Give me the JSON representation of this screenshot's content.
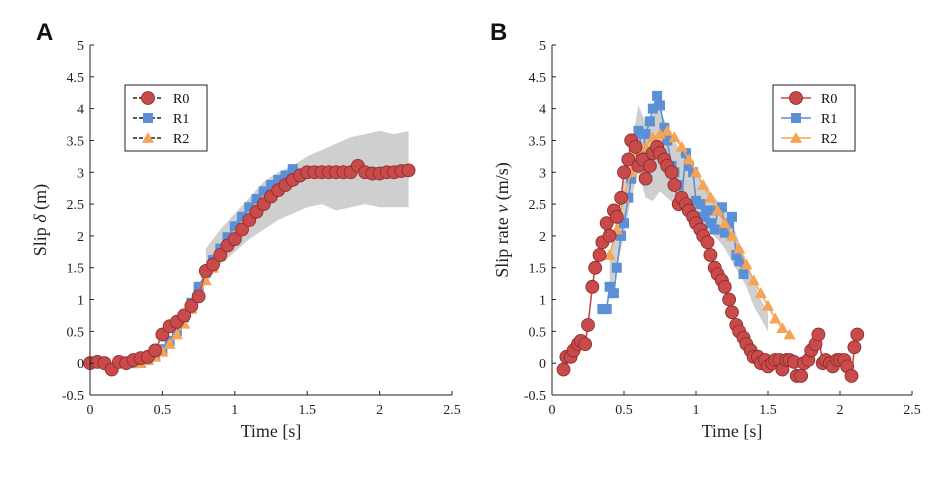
{
  "figure": {
    "panel_labels": [
      "A",
      "B"
    ]
  },
  "chart_data": [
    {
      "panel": "A",
      "type": "line",
      "xlabel": "Time [s]",
      "ylabel_parts": [
        "Slip ",
        "δ",
        " (m)"
      ],
      "xlim": [
        0,
        2.5
      ],
      "ylim": [
        -0.5,
        5
      ],
      "xticks": [
        0,
        0.5,
        1,
        1.5,
        2,
        2.5
      ],
      "xtick_labels": [
        "0",
        "0.5",
        "1",
        "1.5",
        "2",
        "2.5"
      ],
      "yticks": [
        -0.5,
        0,
        0.5,
        1,
        1.5,
        2,
        2.5,
        3,
        3.5,
        4,
        4.5,
        5
      ],
      "ytick_labels": [
        "-0.5",
        "0",
        "0.5",
        "1",
        "1.5",
        "2",
        "2.5",
        "3",
        "3.5",
        "4",
        "4.5",
        "5"
      ],
      "legend": {
        "placement": "top-left",
        "entries": [
          "R0",
          "R1",
          "R2"
        ]
      },
      "band": {
        "x": [
          0.8,
          0.9,
          1.0,
          1.1,
          1.2,
          1.3,
          1.4,
          1.5,
          1.6,
          1.7,
          1.8,
          1.9,
          2.0,
          2.1,
          2.2
        ],
        "upper": [
          1.8,
          2.1,
          2.35,
          2.6,
          2.85,
          3.0,
          3.1,
          3.25,
          3.35,
          3.45,
          3.55,
          3.6,
          3.65,
          3.6,
          3.65
        ],
        "lower": [
          1.25,
          1.55,
          1.75,
          1.95,
          2.1,
          2.25,
          2.35,
          2.45,
          2.5,
          2.4,
          2.45,
          2.5,
          2.45,
          2.45,
          2.45
        ]
      },
      "series": [
        {
          "name": "R1",
          "color": "#5b8fd6",
          "marker": "square",
          "x": [
            0.3,
            0.35,
            0.4,
            0.45,
            0.5,
            0.55,
            0.6,
            0.65,
            0.7,
            0.75,
            0.8,
            0.85,
            0.9,
            0.95,
            1.0,
            1.05,
            1.1,
            1.15,
            1.2,
            1.25,
            1.3,
            1.35,
            1.4
          ],
          "y": [
            0.0,
            0.02,
            0.05,
            0.12,
            0.22,
            0.35,
            0.5,
            0.72,
            0.95,
            1.2,
            1.42,
            1.62,
            1.8,
            1.98,
            2.15,
            2.3,
            2.45,
            2.58,
            2.7,
            2.8,
            2.88,
            2.95,
            3.05
          ]
        },
        {
          "name": "R2",
          "color": "#f5a356",
          "marker": "triangle",
          "x": [
            0.35,
            0.4,
            0.45,
            0.5,
            0.55,
            0.6,
            0.65,
            0.7,
            0.75,
            0.8,
            0.85,
            0.9,
            0.95,
            1.0,
            1.05,
            1.1,
            1.15,
            1.2,
            1.25,
            1.3,
            1.35,
            1.4,
            1.45,
            1.5,
            1.55,
            1.6,
            1.65,
            1.7,
            1.75,
            1.8
          ],
          "y": [
            0.0,
            0.05,
            0.1,
            0.18,
            0.3,
            0.45,
            0.62,
            0.85,
            1.08,
            1.3,
            1.5,
            1.68,
            1.85,
            2.0,
            2.15,
            2.28,
            2.42,
            2.55,
            2.65,
            2.75,
            2.82,
            2.9,
            2.95,
            3.0,
            3.02,
            3.03,
            3.03,
            3.04,
            3.04,
            3.04
          ]
        },
        {
          "name": "R0",
          "color": "#c84a4a",
          "marker": "circle",
          "x": [
            0.0,
            0.05,
            0.1,
            0.15,
            0.2,
            0.25,
            0.3,
            0.35,
            0.4,
            0.45,
            0.5,
            0.55,
            0.6,
            0.65,
            0.7,
            0.75,
            0.8,
            0.85,
            0.9,
            0.95,
            1.0,
            1.05,
            1.1,
            1.15,
            1.2,
            1.25,
            1.3,
            1.35,
            1.4,
            1.45,
            1.5,
            1.55,
            1.6,
            1.65,
            1.7,
            1.75,
            1.8,
            1.85,
            1.9,
            1.95,
            2.0,
            2.05,
            2.1,
            2.15,
            2.2
          ],
          "y": [
            0.0,
            0.02,
            0.0,
            -0.1,
            0.02,
            0.0,
            0.05,
            0.08,
            0.1,
            0.2,
            0.45,
            0.58,
            0.65,
            0.75,
            0.9,
            1.05,
            1.45,
            1.55,
            1.7,
            1.85,
            1.95,
            2.1,
            2.25,
            2.38,
            2.5,
            2.62,
            2.72,
            2.8,
            2.88,
            2.95,
            3.0,
            3.0,
            3.0,
            3.0,
            3.0,
            3.0,
            3.0,
            3.1,
            3.0,
            2.98,
            2.98,
            3.0,
            3.0,
            3.02,
            3.03
          ]
        }
      ]
    },
    {
      "panel": "B",
      "type": "line",
      "xlabel": "Time [s]",
      "ylabel_parts": [
        "Slip rate  ",
        "v",
        " (m/s)"
      ],
      "xlim": [
        0,
        2.5
      ],
      "ylim": [
        -0.5,
        5
      ],
      "xticks": [
        0,
        0.5,
        1,
        1.5,
        2,
        2.5
      ],
      "xtick_labels": [
        "0",
        "0.5",
        "1",
        "1.5",
        "2",
        "2.5"
      ],
      "yticks": [
        -0.5,
        0,
        0.5,
        1,
        1.5,
        2,
        2.5,
        3,
        3.5,
        4,
        4.5,
        5
      ],
      "ytick_labels": [
        "-0.5",
        "0",
        "0.5",
        "1",
        "1.5",
        "2",
        "2.5",
        "3",
        "3.5",
        "4",
        "4.5",
        "5"
      ],
      "legend": {
        "placement": "top-right",
        "entries": [
          "R0",
          "R1",
          "R2"
        ]
      },
      "band": {
        "x": [
          0.4,
          0.45,
          0.5,
          0.55,
          0.6,
          0.65,
          0.7,
          0.75,
          0.8,
          0.85,
          0.9,
          0.95,
          1.0,
          1.05,
          1.1,
          1.15,
          1.2,
          1.25,
          1.3,
          1.35,
          1.4,
          1.45,
          1.5
        ],
        "upper": [
          1.6,
          2.3,
          2.9,
          3.4,
          4.05,
          3.8,
          3.9,
          4.0,
          3.7,
          3.5,
          3.3,
          3.2,
          3.0,
          2.85,
          2.7,
          2.55,
          2.45,
          2.2,
          1.9,
          1.6,
          1.3,
          1.0,
          0.8
        ],
        "lower": [
          1.0,
          1.5,
          2.0,
          2.6,
          3.0,
          2.6,
          2.55,
          2.7,
          2.6,
          2.5,
          2.4,
          2.3,
          2.2,
          2.1,
          2.05,
          1.95,
          1.8,
          1.6,
          1.4,
          1.2,
          0.9,
          0.7,
          0.5
        ]
      },
      "series": [
        {
          "name": "R1",
          "color": "#5b8fd6",
          "marker": "square",
          "x": [
            0.35,
            0.38,
            0.4,
            0.43,
            0.45,
            0.48,
            0.5,
            0.53,
            0.55,
            0.58,
            0.6,
            0.63,
            0.65,
            0.68,
            0.7,
            0.73,
            0.75,
            0.78,
            0.8,
            0.83,
            0.85,
            0.88,
            0.9,
            0.93,
            0.95,
            0.98,
            1.0,
            1.03,
            1.05,
            1.08,
            1.1,
            1.13,
            1.15,
            1.18,
            1.2,
            1.23,
            1.25,
            1.28,
            1.3,
            1.33
          ],
          "y": [
            0.85,
            0.85,
            1.2,
            1.1,
            1.5,
            2.0,
            2.2,
            2.6,
            2.9,
            3.2,
            3.65,
            3.3,
            3.6,
            3.8,
            4.0,
            4.2,
            4.05,
            3.7,
            3.5,
            3.1,
            3.0,
            2.8,
            2.6,
            3.3,
            3.1,
            3.0,
            2.55,
            2.5,
            2.3,
            2.4,
            2.2,
            2.1,
            2.4,
            2.45,
            2.05,
            2.2,
            2.3,
            1.7,
            1.6,
            1.4
          ]
        },
        {
          "name": "R2",
          "color": "#f5a356",
          "marker": "triangle",
          "x": [
            0.4,
            0.45,
            0.5,
            0.55,
            0.6,
            0.65,
            0.7,
            0.75,
            0.8,
            0.85,
            0.9,
            0.95,
            1.0,
            1.05,
            1.1,
            1.15,
            1.2,
            1.25,
            1.3,
            1.35,
            1.4,
            1.45,
            1.5,
            1.55,
            1.6,
            1.65
          ],
          "y": [
            1.7,
            2.1,
            2.6,
            3.0,
            3.3,
            3.4,
            3.55,
            3.6,
            3.65,
            3.55,
            3.4,
            3.2,
            3.0,
            2.8,
            2.6,
            2.4,
            2.2,
            2.0,
            1.8,
            1.55,
            1.3,
            1.1,
            0.9,
            0.7,
            0.55,
            0.45
          ]
        },
        {
          "name": "R0",
          "color": "#c84a4a",
          "marker": "circle",
          "x": [
            0.08,
            0.1,
            0.13,
            0.15,
            0.18,
            0.2,
            0.23,
            0.25,
            0.28,
            0.3,
            0.33,
            0.35,
            0.38,
            0.4,
            0.43,
            0.45,
            0.48,
            0.5,
            0.53,
            0.55,
            0.58,
            0.6,
            0.63,
            0.65,
            0.68,
            0.7,
            0.73,
            0.75,
            0.78,
            0.8,
            0.83,
            0.85,
            0.88,
            0.9,
            0.93,
            0.95,
            0.98,
            1.0,
            1.03,
            1.05,
            1.08,
            1.1,
            1.13,
            1.15,
            1.18,
            1.2,
            1.23,
            1.25,
            1.28,
            1.3,
            1.33,
            1.35,
            1.38,
            1.4,
            1.43,
            1.45,
            1.48,
            1.5,
            1.53,
            1.55,
            1.58,
            1.6,
            1.63,
            1.65,
            1.68,
            1.7,
            1.73,
            1.75,
            1.78,
            1.8,
            1.83,
            1.85,
            1.88,
            1.9,
            1.93,
            1.95,
            1.98,
            2.0,
            2.03,
            2.05,
            2.08,
            2.1,
            2.12
          ],
          "y": [
            -0.1,
            0.1,
            0.1,
            0.2,
            0.3,
            0.35,
            0.3,
            0.6,
            1.2,
            1.5,
            1.7,
            1.9,
            2.2,
            2.0,
            2.4,
            2.3,
            2.6,
            3.0,
            3.2,
            3.5,
            3.4,
            3.1,
            3.2,
            2.9,
            3.1,
            3.3,
            3.4,
            3.3,
            3.2,
            3.1,
            3.0,
            2.8,
            2.5,
            2.6,
            2.5,
            2.4,
            2.3,
            2.2,
            2.1,
            2.0,
            1.9,
            1.7,
            1.5,
            1.4,
            1.3,
            1.2,
            1.0,
            0.8,
            0.6,
            0.5,
            0.4,
            0.3,
            0.2,
            0.1,
            0.1,
            0.0,
            0.05,
            -0.05,
            0.0,
            0.05,
            0.05,
            -0.1,
            0.05,
            0.05,
            0.02,
            -0.2,
            -0.2,
            0.0,
            0.05,
            0.2,
            0.3,
            0.45,
            0.0,
            0.05,
            0.0,
            -0.05,
            0.05,
            0.05,
            0.05,
            -0.05,
            -0.2,
            0.25,
            0.45
          ]
        }
      ]
    }
  ]
}
